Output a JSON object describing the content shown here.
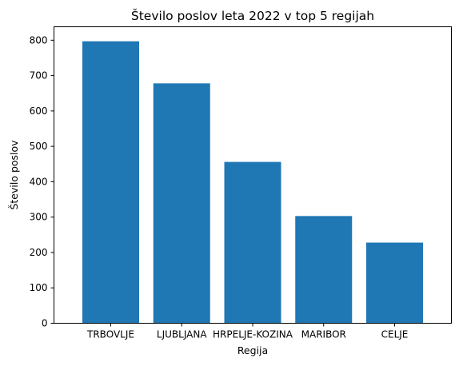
{
  "chart_data": {
    "type": "bar",
    "title": "Število poslov leta 2022 v top 5 regijah",
    "xlabel": "Regija",
    "ylabel": "Število poslov",
    "categories": [
      "TRBOVLJE",
      "LJUBLJANA",
      "HRPELJE-KOZINA",
      "MARIBOR",
      "CELJE"
    ],
    "values": [
      797,
      678,
      456,
      303,
      228
    ],
    "ylim": [
      0,
      838
    ],
    "yticks": [
      0,
      100,
      200,
      300,
      400,
      500,
      600,
      700,
      800
    ],
    "grid": false,
    "bar_color": "#1f77b4"
  }
}
